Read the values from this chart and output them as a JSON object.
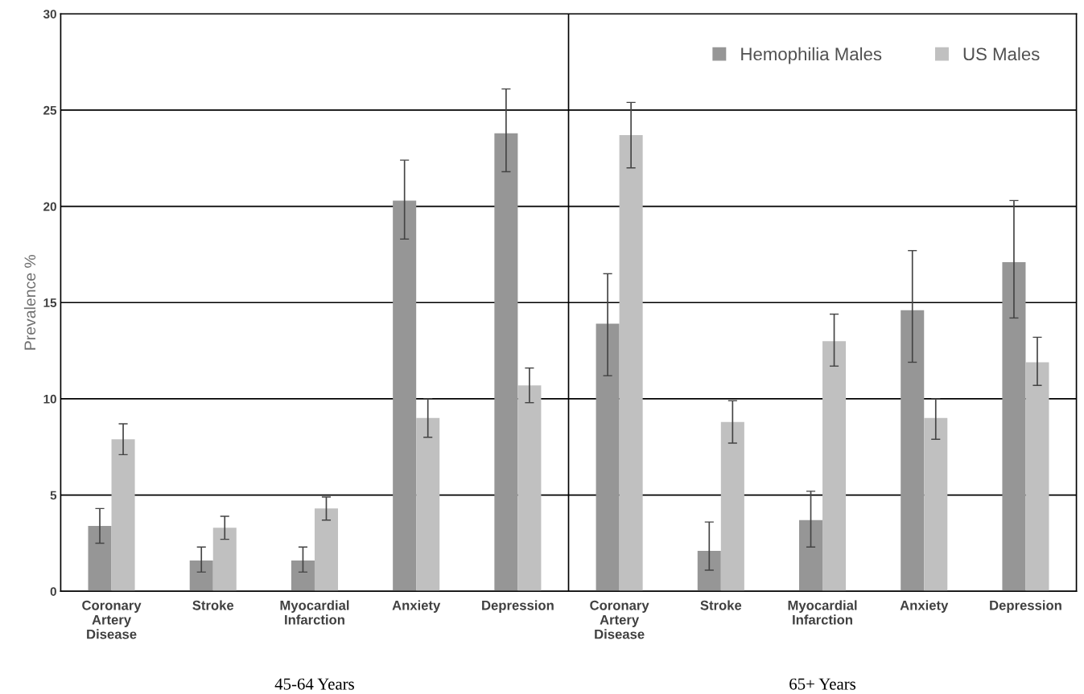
{
  "chart_data": {
    "type": "bar",
    "ylabel": "Prevalence %",
    "categories": [
      "Coronary\nArtery\nDisease",
      "Stroke",
      "Myocardial\nInfarction",
      "Anxiety",
      "Depression",
      "Coronary\nArtery\nDisease",
      "Stroke",
      "Myocardial\nInfarction",
      "Anxiety",
      "Depression"
    ],
    "series": [
      {
        "name": "Hemophilia Males",
        "color": "#969696",
        "values": [
          3.4,
          1.6,
          1.6,
          20.3,
          23.8,
          13.9,
          2.1,
          3.7,
          14.6,
          17.1
        ],
        "errors": [
          [
            2.5,
            4.3
          ],
          [
            1.0,
            2.3
          ],
          [
            1.0,
            2.3
          ],
          [
            18.3,
            22.4
          ],
          [
            21.8,
            26.1
          ],
          [
            11.2,
            16.5
          ],
          [
            1.1,
            3.6
          ],
          [
            2.3,
            5.2
          ],
          [
            11.9,
            17.7
          ],
          [
            14.2,
            20.3
          ]
        ]
      },
      {
        "name": "US Males",
        "color": "#c0c0c0",
        "values": [
          7.9,
          3.3,
          4.3,
          9.0,
          10.7,
          23.7,
          8.8,
          13.0,
          9.0,
          11.9
        ],
        "errors": [
          [
            7.1,
            8.7
          ],
          [
            2.7,
            3.9
          ],
          [
            3.7,
            4.9
          ],
          [
            8.0,
            10.0
          ],
          [
            9.8,
            11.6
          ],
          [
            22.0,
            25.4
          ],
          [
            7.7,
            9.9
          ],
          [
            11.7,
            14.4
          ],
          [
            7.9,
            10.0
          ],
          [
            10.7,
            13.2
          ]
        ]
      }
    ],
    "ylim": [
      0,
      30
    ],
    "yticks": [
      0,
      5,
      10,
      15,
      20,
      25,
      30
    ],
    "grid": "y",
    "legend": "top right",
    "annotations": [
      "45-64 Years",
      "65+ Years"
    ]
  }
}
